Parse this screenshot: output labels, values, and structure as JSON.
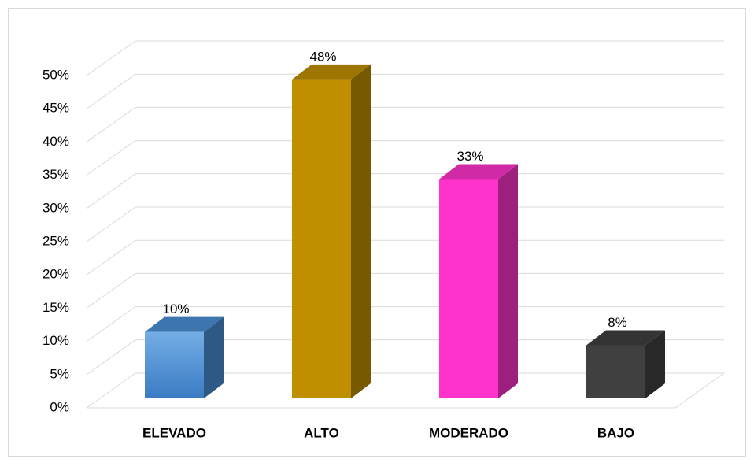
{
  "chart_data": {
    "type": "bar3d",
    "categories": [
      "ELEVADO",
      "ALTO",
      "MODERADO",
      "BAJO"
    ],
    "values": [
      10,
      48,
      33,
      8
    ],
    "value_labels": [
      "10%",
      "48%",
      "33%",
      "8%"
    ],
    "colors": [
      "#4a8fd6",
      "#bf8f00",
      "#ff33cc",
      "#404040"
    ],
    "ylim": [
      0,
      50
    ],
    "yticks": [
      {
        "value": 0,
        "label": "0%"
      },
      {
        "value": 5,
        "label": "5%"
      },
      {
        "value": 10,
        "label": "10%"
      },
      {
        "value": 15,
        "label": "15%"
      },
      {
        "value": 20,
        "label": "20%"
      },
      {
        "value": 25,
        "label": "25%"
      },
      {
        "value": 30,
        "label": "30%"
      },
      {
        "value": 35,
        "label": "35%"
      },
      {
        "value": 40,
        "label": "40%"
      },
      {
        "value": 45,
        "label": "45%"
      },
      {
        "value": 50,
        "label": "50%"
      }
    ],
    "grid": true
  }
}
